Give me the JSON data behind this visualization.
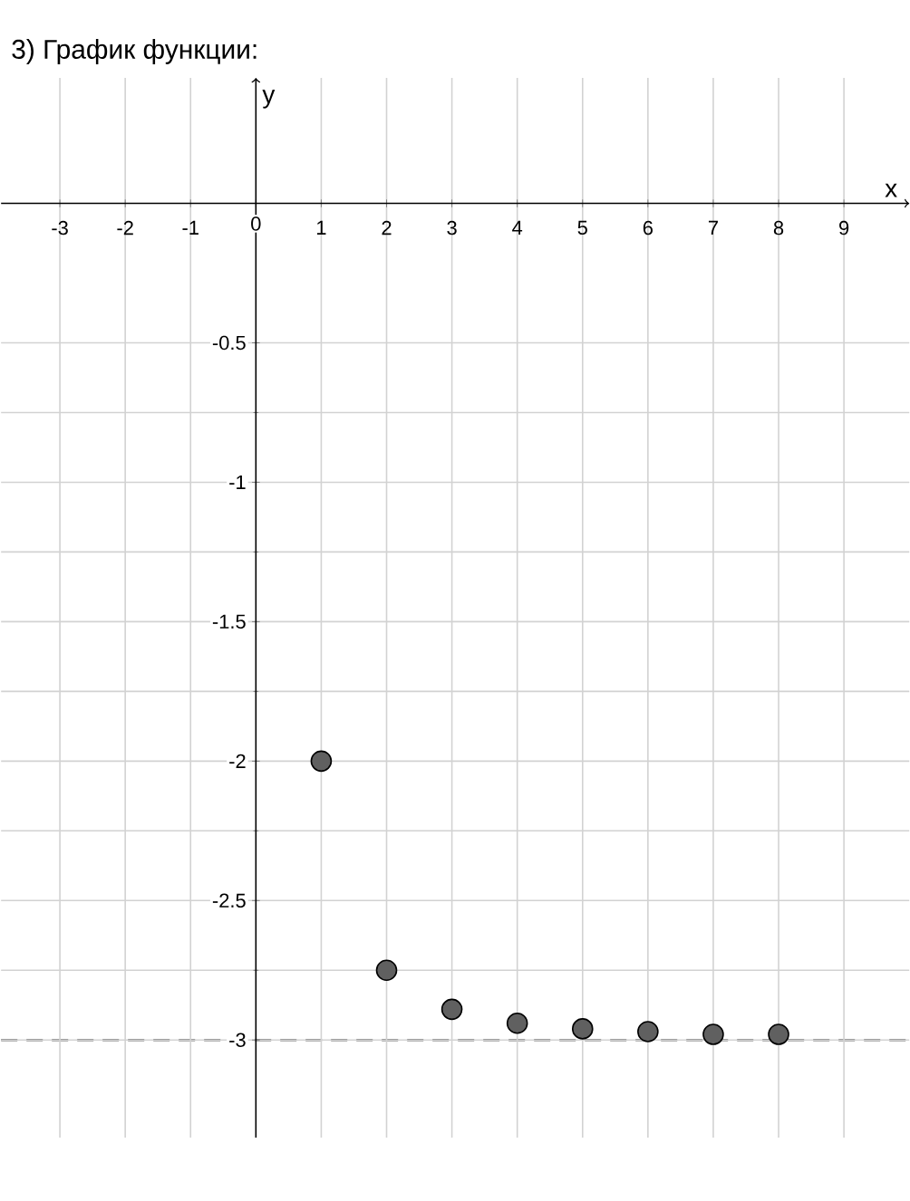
{
  "chart_data": {
    "type": "scatter",
    "title": "3) График функции:",
    "xlabel": "x",
    "ylabel": "y",
    "x": [
      1,
      2,
      3,
      4,
      5,
      6,
      7,
      8
    ],
    "series": [
      {
        "color": "#606060",
        "values": [
          -2,
          -2.75,
          -2.89,
          -2.94,
          -2.96,
          -2.97,
          -2.98,
          -2.98
        ]
      }
    ],
    "marker": "circle",
    "grid": true,
    "xlim": [
      -3.9,
      10
    ],
    "ylim": [
      -3.35,
      0.45
    ],
    "xticks": [
      -3,
      -2,
      -1,
      0,
      1,
      2,
      3,
      4,
      5,
      6,
      7,
      8,
      9
    ],
    "yticks": [
      -0.5,
      -1,
      -1.5,
      -2,
      -2.5,
      -3
    ],
    "ref_lines": [
      {
        "axis": "y",
        "value": -3,
        "color": "#666666",
        "line_style": "dashed"
      }
    ]
  }
}
